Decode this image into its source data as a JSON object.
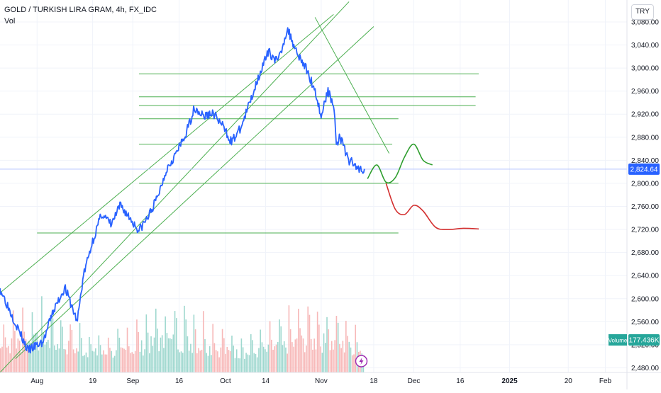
{
  "header": {
    "title": "GOLD / TURKISH LIRA GRAM, 4h, FX_IDC",
    "volume_label": "Vol",
    "currency": "TRY"
  },
  "price_axis": {
    "ticks": [
      "3,080.00",
      "3,040.00",
      "3,000.00",
      "2,960.00",
      "2,920.00",
      "2,880.00",
      "2,840.00",
      "2,800.00",
      "2,760.00",
      "2,720.00",
      "2,680.00",
      "2,640.00",
      "2,600.00",
      "2,560.00",
      "2,520.00",
      "2,480.00"
    ]
  },
  "time_axis": {
    "ticks": [
      "Aug",
      "19",
      "Sep",
      "16",
      "Oct",
      "14",
      "Nov",
      "18",
      "Dec",
      "16",
      "2025",
      "20",
      "Feb"
    ]
  },
  "last_price": {
    "value": 2824.64,
    "label": "2,824.64",
    "color": "#2962ff"
  },
  "volume_badge": {
    "label": "Volume",
    "value": "177.436K",
    "color": "#26a69a"
  },
  "colors": {
    "price_line": "#2962ff",
    "drawings": "#4caf50",
    "bull_projection": "#2e9e2e",
    "bear_projection": "#d32f2f",
    "volume_up": "#9fd8cf",
    "volume_down": "#f7b8b8",
    "grid": "#f0f3fa",
    "axis_text": "#131722"
  },
  "chart_data": {
    "type": "line",
    "title": "GOLD / TURKISH LIRA GRAM, 4h, FX_IDC",
    "xlabel": "",
    "ylabel": "",
    "x_range": [
      "2024-07-20",
      "2025-02-08"
    ],
    "ylim": [
      2472,
      3118
    ],
    "grid": true,
    "series": [
      {
        "name": "",
        "role": "price",
        "x": [
          "2024-07-20",
          "2024-07-25",
          "2024-07-29",
          "2024-08-03",
          "2024-08-06",
          "2024-08-10",
          "2024-08-14",
          "2024-08-16",
          "2024-08-19",
          "2024-08-22",
          "2024-08-25",
          "2024-08-28",
          "2024-08-31",
          "2024-09-03",
          "2024-09-06",
          "2024-09-09",
          "2024-09-12",
          "2024-09-15",
          "2024-09-18",
          "2024-09-21",
          "2024-09-24",
          "2024-09-27",
          "2024-09-30",
          "2024-10-03",
          "2024-10-06",
          "2024-10-09",
          "2024-10-12",
          "2024-10-15",
          "2024-10-18",
          "2024-10-21",
          "2024-10-24",
          "2024-10-27",
          "2024-10-30",
          "2024-11-01",
          "2024-11-03",
          "2024-11-05",
          "2024-11-06",
          "2024-11-07",
          "2024-11-08",
          "2024-11-10",
          "2024-11-11",
          "2024-11-12",
          "2024-11-13",
          "2024-11-14",
          "2024-11-15"
        ],
        "y": [
          2618,
          2558,
          2510,
          2525,
          2575,
          2620,
          2560,
          2640,
          2700,
          2748,
          2728,
          2762,
          2740,
          2718,
          2742,
          2776,
          2826,
          2852,
          2882,
          2932,
          2916,
          2922,
          2900,
          2872,
          2896,
          2942,
          2990,
          3028,
          3010,
          3068,
          3030,
          3000,
          2962,
          2915,
          2960,
          2940,
          2868,
          2880,
          2870,
          2835,
          2842,
          2826,
          2828,
          2824,
          2825
        ]
      },
      {
        "name": "",
        "role": "bullish projection",
        "x": [
          "2024-11-16",
          "2024-11-19",
          "2024-11-22",
          "2024-11-25",
          "2024-11-28",
          "2024-12-01",
          "2024-12-04",
          "2024-12-07"
        ],
        "y": [
          2808,
          2832,
          2802,
          2810,
          2846,
          2868,
          2840,
          2832
        ]
      },
      {
        "name": "",
        "role": "bearish projection",
        "x": [
          "2024-11-22",
          "2024-11-25",
          "2024-11-28",
          "2024-12-01",
          "2024-12-04",
          "2024-12-08",
          "2024-12-12",
          "2024-12-17",
          "2024-12-22"
        ],
        "y": [
          2800,
          2755,
          2746,
          2762,
          2752,
          2724,
          2720,
          2722,
          2721
        ]
      }
    ],
    "horizontal_levels": [
      2990,
      2950,
      2935,
      2912,
      2868,
      2800,
      2714
    ],
    "trend_channel": "ascending channel with three parallel lines and a descending trendline from the November top",
    "volume": {
      "last_value": "177.436K"
    }
  }
}
